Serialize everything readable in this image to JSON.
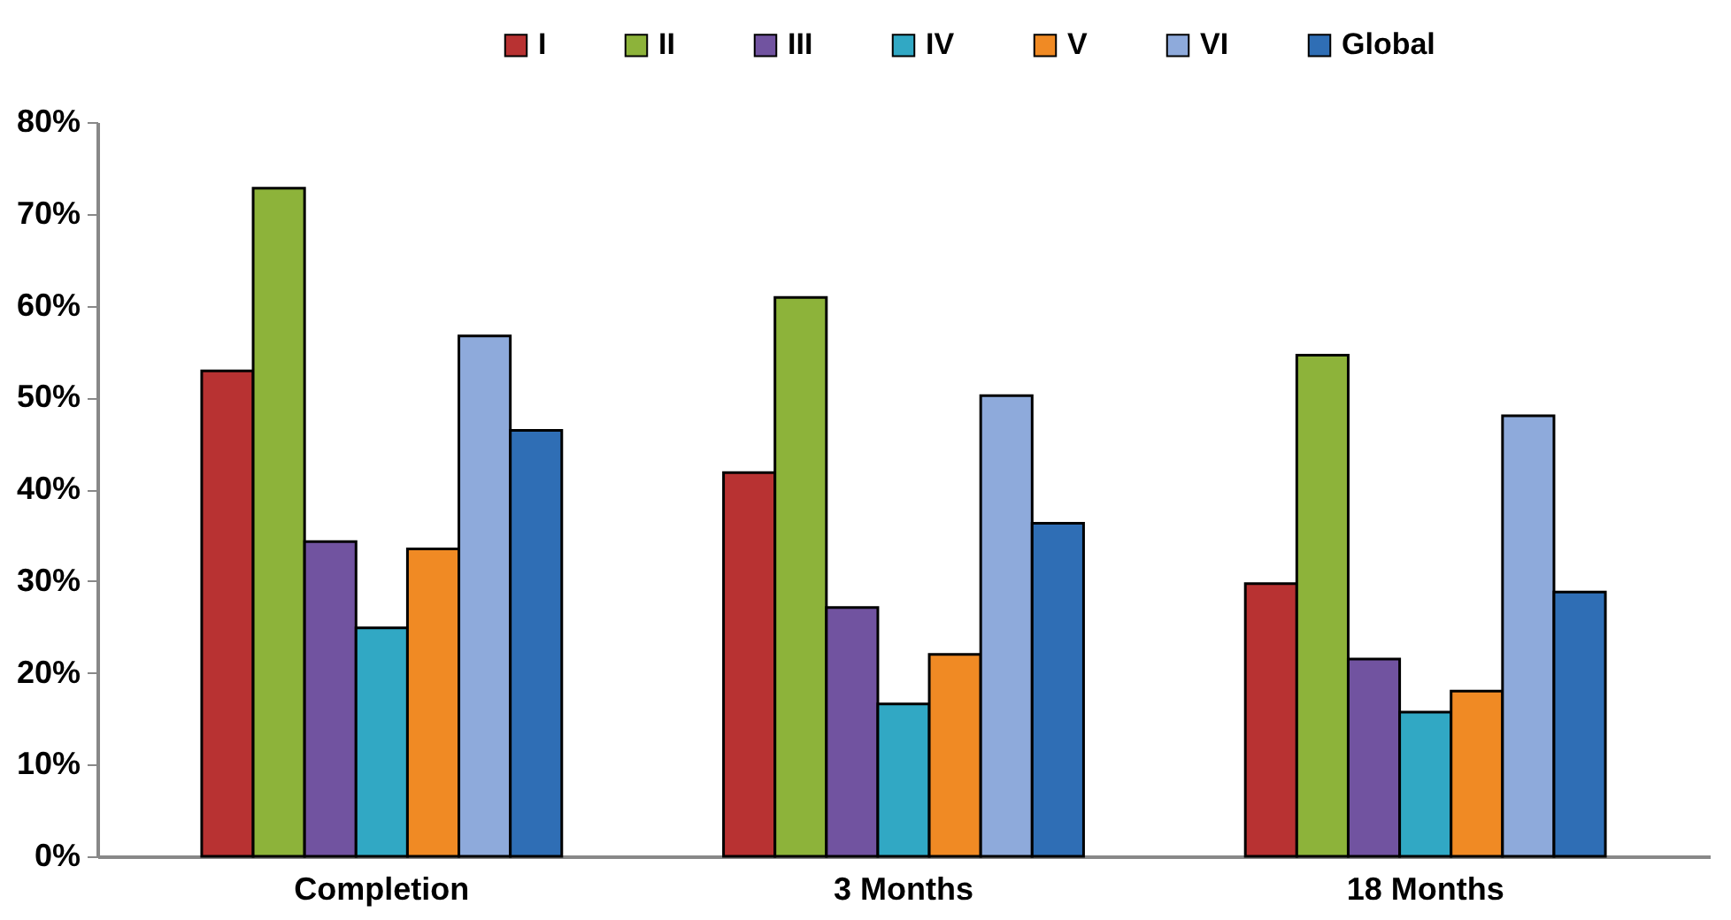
{
  "chart_data": {
    "type": "bar",
    "categories": [
      "Completion",
      "3 Months",
      "18 Months"
    ],
    "series": [
      {
        "name": "I",
        "color": "#b83232",
        "values": [
          52.9,
          41.8,
          29.7
        ]
      },
      {
        "name": "II",
        "color": "#8db33a",
        "values": [
          72.8,
          60.9,
          54.6
        ]
      },
      {
        "name": "III",
        "color": "#7153a0",
        "values": [
          34.3,
          27.1,
          21.5
        ]
      },
      {
        "name": "IV",
        "color": "#31a8c4",
        "values": [
          24.9,
          16.6,
          15.7
        ]
      },
      {
        "name": "V",
        "color": "#f08a24",
        "values": [
          33.5,
          22.0,
          18.0
        ]
      },
      {
        "name": "VI",
        "color": "#8eaadb",
        "values": [
          56.7,
          50.2,
          48.0
        ]
      },
      {
        "name": "Global",
        "color": "#2f6eb5",
        "values": [
          46.4,
          36.3,
          28.8
        ]
      }
    ],
    "ylim": [
      0,
      80
    ],
    "yticks": [
      {
        "value": 0,
        "label": "0%"
      },
      {
        "value": 10,
        "label": "10%"
      },
      {
        "value": 20,
        "label": "20%"
      },
      {
        "value": 30,
        "label": "30%"
      },
      {
        "value": 40,
        "label": "40%"
      },
      {
        "value": 50,
        "label": "50%"
      },
      {
        "value": 60,
        "label": "60%"
      },
      {
        "value": 70,
        "label": "70%"
      },
      {
        "value": 80,
        "label": "80%"
      }
    ],
    "grid": false,
    "legend": "top right"
  }
}
